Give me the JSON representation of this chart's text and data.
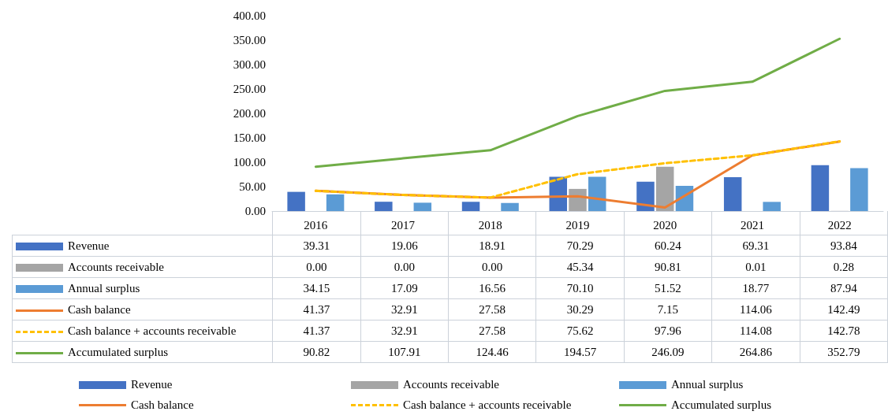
{
  "chart_data": {
    "type": "bar",
    "categories": [
      "2016",
      "2017",
      "2018",
      "2019",
      "2020",
      "2021",
      "2022"
    ],
    "series": [
      {
        "name": "Revenue",
        "color": "#4472c4",
        "values": [
          39.31,
          19.06,
          18.91,
          70.29,
          60.24,
          69.31,
          93.84
        ],
        "value_labels": [
          "39.31",
          "19.06",
          "18.91",
          "70.29",
          "60.24",
          "69.31",
          "93.84"
        ]
      },
      {
        "name": "Accounts receivable",
        "color": "#a5a5a5",
        "values": [
          0,
          0,
          0,
          45.34,
          90.81,
          0.01,
          0.28
        ],
        "value_labels": [
          "0.00",
          "0.00",
          "0.00",
          "45.34",
          "90.81",
          "0.01",
          "0.28"
        ]
      },
      {
        "name": "Annual surplus",
        "color": "#5b9bd5",
        "values": [
          34.15,
          17.09,
          16.56,
          70.1,
          51.52,
          18.77,
          87.94
        ],
        "value_labels": [
          "34.15",
          "17.09",
          "16.56",
          "70.10",
          "51.52",
          "18.77",
          "87.94"
        ]
      },
      {
        "name": "Cash balance",
        "type": "line",
        "color": "#ed7d31",
        "line_style": "solid",
        "values": [
          41.37,
          32.91,
          27.58,
          30.29,
          7.15,
          114.06,
          142.49
        ],
        "value_labels": [
          "41.37",
          "32.91",
          "27.58",
          "30.29",
          "7.15",
          "114.06",
          "142.49"
        ]
      },
      {
        "name": "Cash balance + accounts receivable",
        "type": "line",
        "color": "#ffc000",
        "line_style": "dashed",
        "values": [
          41.37,
          32.91,
          27.58,
          75.62,
          97.96,
          114.08,
          142.78
        ],
        "value_labels": [
          "41.37",
          "32.91",
          "27.58",
          "75.62",
          "97.96",
          "114.08",
          "142.78"
        ]
      },
      {
        "name": "Accumulated surplus",
        "type": "line",
        "color": "#70ad47",
        "line_style": "solid",
        "values": [
          90.82,
          107.91,
          124.46,
          194.57,
          246.09,
          264.86,
          352.79
        ],
        "value_labels": [
          "90.82",
          "107.91",
          "124.46",
          "194.57",
          "246.09",
          "264.86",
          "352.79"
        ]
      }
    ],
    "ylim": [
      0,
      400
    ],
    "yticks": [
      {
        "value": 0,
        "label": "0.00"
      },
      {
        "value": 50,
        "label": "50.00"
      },
      {
        "value": 100,
        "label": "100.00"
      },
      {
        "value": 150,
        "label": "150.00"
      },
      {
        "value": 200,
        "label": "200.00"
      },
      {
        "value": 250,
        "label": "250.00"
      },
      {
        "value": 300,
        "label": "300.00"
      },
      {
        "value": 350,
        "label": "350.00"
      },
      {
        "value": 400,
        "label": "400.00"
      }
    ],
    "grid": false,
    "marker": "none",
    "legend": "bottom",
    "data_labels": true
  }
}
